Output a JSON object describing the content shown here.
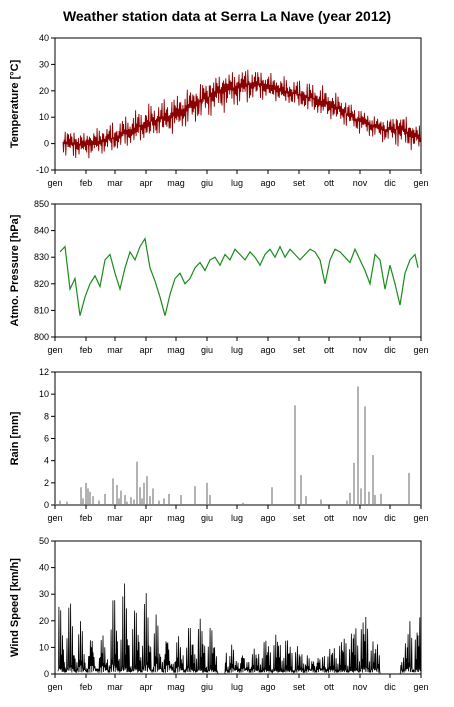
{
  "title": "Weather station data at Serra La Nave (year 2012)",
  "chart_data": [
    {
      "type": "line",
      "ylabel": "Temperature  [°C]",
      "ylim": [
        -10,
        40
      ],
      "yticks": [
        -10,
        0,
        10,
        20,
        30,
        40
      ],
      "x_months": [
        "gen",
        "feb",
        "mar",
        "apr",
        "mag",
        "giu",
        "lug",
        "ago",
        "set",
        "ott",
        "nov",
        "dic",
        "gen"
      ],
      "color": "#8b0000",
      "envelope_days": [
        0,
        15,
        30,
        45,
        60,
        75,
        90,
        105,
        120,
        135,
        150,
        165,
        180,
        195,
        210,
        225,
        240,
        255,
        270,
        285,
        300,
        315,
        330,
        345,
        366
      ],
      "envelope_low": [
        -5,
        -6,
        -6,
        -5,
        -4,
        -2,
        0,
        2,
        3,
        6,
        9,
        11,
        13,
        15,
        16,
        15,
        13,
        11,
        9,
        7,
        4,
        2,
        0,
        -2,
        -4
      ],
      "envelope_high": [
        8,
        6,
        5,
        7,
        9,
        12,
        15,
        17,
        19,
        22,
        25,
        28,
        29,
        30,
        28,
        26,
        25,
        24,
        22,
        19,
        15,
        12,
        10,
        13,
        7
      ]
    },
    {
      "type": "line",
      "ylabel": "Atmo. Pressure  [hPa]",
      "ylim": [
        800,
        850
      ],
      "yticks": [
        800,
        810,
        820,
        830,
        840,
        850
      ],
      "x_months": [
        "gen",
        "feb",
        "mar",
        "apr",
        "mag",
        "giu",
        "lug",
        "ago",
        "set",
        "ott",
        "nov",
        "dic",
        "gen"
      ],
      "color": "#1a8c1a",
      "series_days": [
        5,
        10,
        15,
        20,
        25,
        30,
        35,
        40,
        45,
        50,
        55,
        60,
        65,
        70,
        75,
        80,
        85,
        90,
        95,
        100,
        105,
        110,
        115,
        120,
        125,
        130,
        135,
        140,
        145,
        150,
        155,
        160,
        165,
        170,
        175,
        180,
        185,
        190,
        195,
        200,
        205,
        210,
        215,
        220,
        225,
        230,
        235,
        240,
        245,
        250,
        255,
        260,
        265,
        270,
        275,
        280,
        285,
        290,
        295,
        300,
        305,
        310,
        315,
        320,
        325,
        330,
        335,
        340,
        345,
        350,
        355,
        360,
        363
      ],
      "series_values": [
        832,
        834,
        818,
        822,
        808,
        815,
        820,
        823,
        819,
        829,
        831,
        824,
        818,
        826,
        832,
        829,
        834,
        837,
        826,
        821,
        815,
        808,
        816,
        822,
        824,
        820,
        822,
        826,
        828,
        825,
        829,
        830,
        827,
        831,
        829,
        833,
        831,
        829,
        832,
        830,
        827,
        831,
        833,
        830,
        834,
        830,
        833,
        831,
        829,
        831,
        833,
        832,
        829,
        820,
        829,
        833,
        832,
        830,
        828,
        833,
        829,
        825,
        820,
        831,
        829,
        818,
        827,
        820,
        812,
        824,
        829,
        831,
        826
      ]
    },
    {
      "type": "bar",
      "ylabel": "Rain  [mm]",
      "ylim": [
        0,
        12
      ],
      "yticks": [
        0,
        2,
        4,
        6,
        8,
        10,
        12
      ],
      "x_months": [
        "gen",
        "feb",
        "mar",
        "apr",
        "mag",
        "giu",
        "lug",
        "ago",
        "set",
        "ott",
        "nov",
        "dic",
        "gen"
      ],
      "color": "#808080",
      "days": [
        5,
        12,
        26,
        28,
        31,
        33,
        35,
        38,
        44,
        50,
        58,
        62,
        64,
        66,
        70,
        72,
        76,
        79,
        82,
        85,
        87,
        89,
        92,
        95,
        98,
        104,
        109,
        114,
        126,
        140,
        152,
        155,
        188,
        217,
        240,
        246,
        251,
        266,
        292,
        295,
        299,
        303,
        306,
        310,
        314,
        318,
        320,
        326,
        354
      ],
      "values": [
        0.4,
        0.3,
        1.6,
        0.6,
        2.0,
        1.5,
        1.2,
        0.8,
        0.4,
        1.0,
        2.4,
        1.8,
        0.6,
        1.3,
        0.9,
        0.3,
        0.7,
        0.5,
        3.9,
        1.6,
        0.6,
        2.0,
        2.6,
        0.8,
        1.5,
        0.4,
        0.6,
        1.0,
        0.9,
        1.7,
        2.0,
        0.9,
        0.2,
        1.6,
        9.0,
        2.7,
        0.8,
        0.5,
        0.4,
        1.1,
        3.8,
        10.7,
        1.5,
        8.9,
        1.2,
        4.5,
        0.9,
        1.0,
        2.9
      ]
    },
    {
      "type": "line",
      "ylabel": "Wind Speed  [km/h]",
      "ylim": [
        0,
        50
      ],
      "yticks": [
        0,
        10,
        20,
        30,
        40,
        50
      ],
      "x_months": [
        "gen",
        "feb",
        "mar",
        "apr",
        "mag",
        "giu",
        "lug",
        "ago",
        "set",
        "ott",
        "nov",
        "dic",
        "gen"
      ],
      "color": "#000000",
      "envelope_days": [
        0,
        10,
        20,
        30,
        40,
        50,
        60,
        70,
        80,
        90,
        100,
        110,
        120,
        130,
        140,
        150,
        160,
        170,
        180,
        190,
        200,
        210,
        220,
        230,
        240,
        250,
        260,
        270,
        280,
        290,
        300,
        310,
        320,
        330,
        340,
        355,
        366
      ],
      "envelope_high": [
        22,
        32,
        28,
        25,
        24,
        23,
        39,
        38,
        26,
        38,
        35,
        30,
        24,
        22,
        26,
        23,
        20,
        21,
        19,
        17,
        16,
        18,
        19,
        18,
        17,
        15,
        16,
        18,
        17,
        20,
        24,
        35,
        22,
        20,
        15,
        30,
        28
      ],
      "gaps": [
        [
          163,
          170
        ],
        [
          325,
          345
        ]
      ]
    }
  ]
}
